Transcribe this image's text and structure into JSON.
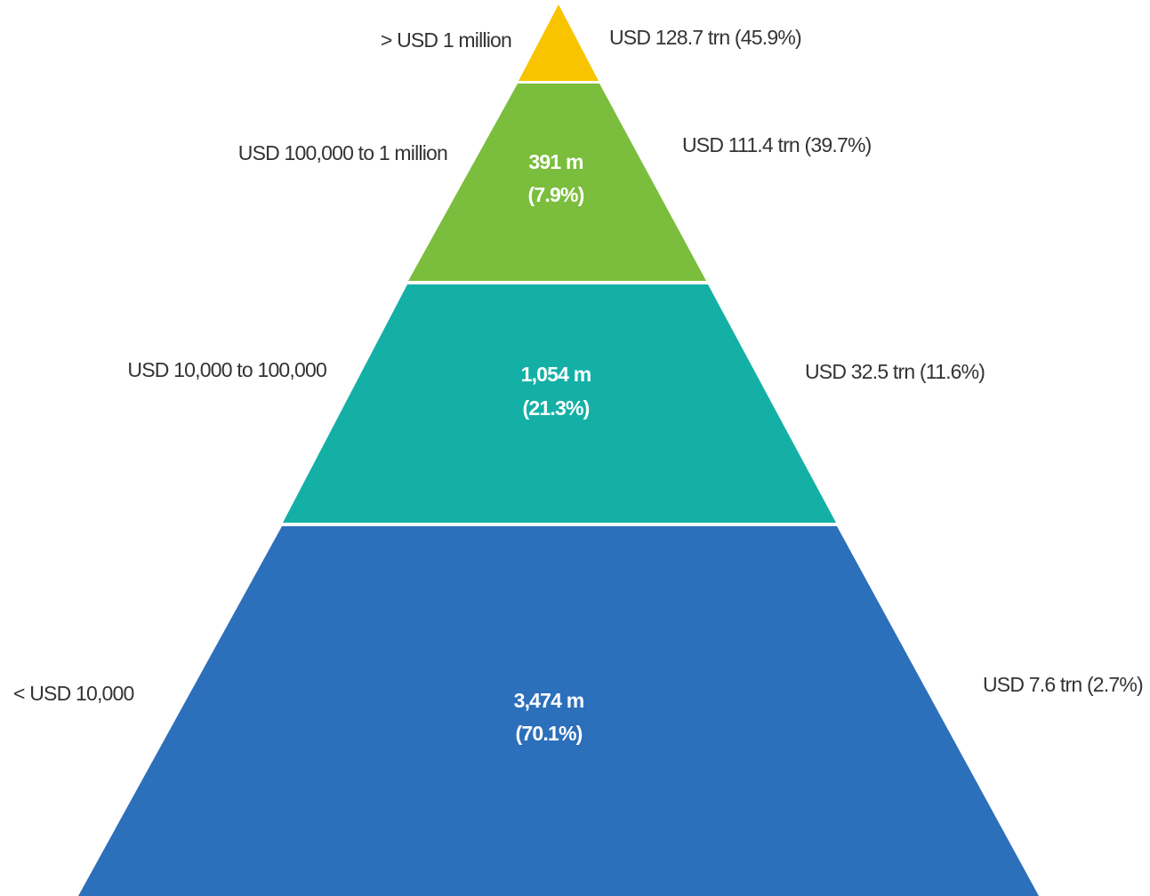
{
  "levels": [
    {
      "label": "> USD 1 million",
      "wealth": "USD 128.7 trn (45.9%)"
    },
    {
      "label": "USD 100,000  to 1 million",
      "population": "391 m",
      "population_share": "(7.9%)",
      "wealth": "USD 111.4 trn (39.7%)"
    },
    {
      "label": "USD 10,000  to 100,000",
      "population": "1,054 m",
      "population_share": "(21.3%)",
      "wealth": "USD 32.5 trn (11.6%)"
    },
    {
      "label": "< USD 10,000",
      "population": "3,474 m",
      "population_share": "(70.1%)",
      "wealth": "USD 7.6 trn (2.7%)"
    }
  ]
}
